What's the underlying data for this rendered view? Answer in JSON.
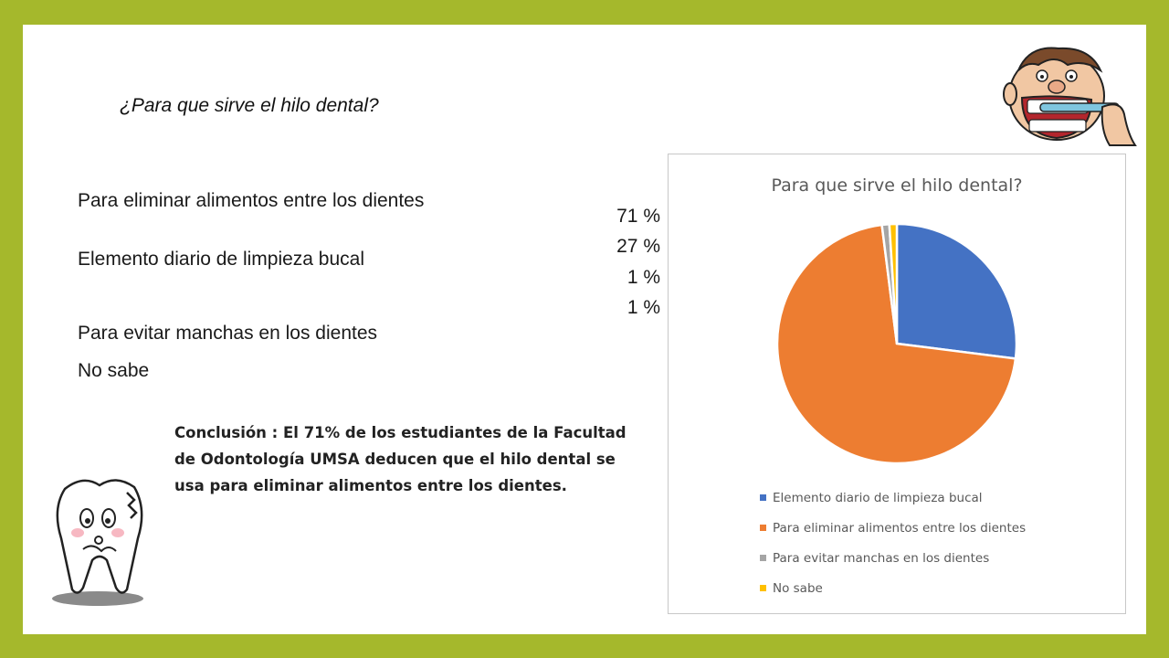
{
  "slide": {
    "question": "¿Para que sirve el hilo dental?",
    "options": [
      "Para eliminar alimentos entre los dientes",
      "Elemento diario de limpieza bucal",
      "Para evitar manchas en los dientes",
      "No sabe"
    ],
    "percentages": [
      "71 %",
      "27 %",
      "1 %",
      "1 %"
    ],
    "conclusion": "Conclusión : El 71% de los estudiantes de la Facultad de Odontología UMSA deducen que el hilo dental se usa para eliminar alimentos entre los dientes."
  },
  "colors": {
    "frame": "#a5b82c",
    "series": [
      "#4472c4",
      "#ed7d31",
      "#a5a5a5",
      "#ffc000"
    ]
  },
  "icons": {
    "top_right": "brushing-teeth-cartoon-icon",
    "bottom_left": "tooth-cartoon-icon"
  },
  "chart_data": {
    "type": "pie",
    "title": "Para que sirve el hilo dental?",
    "categories": [
      "Elemento diario de limpieza bucal",
      "Para eliminar alimentos entre los dientes",
      "Para evitar manchas en los dientes",
      "No sabe"
    ],
    "values": [
      27,
      71,
      1,
      1
    ],
    "legend_position": "bottom"
  }
}
